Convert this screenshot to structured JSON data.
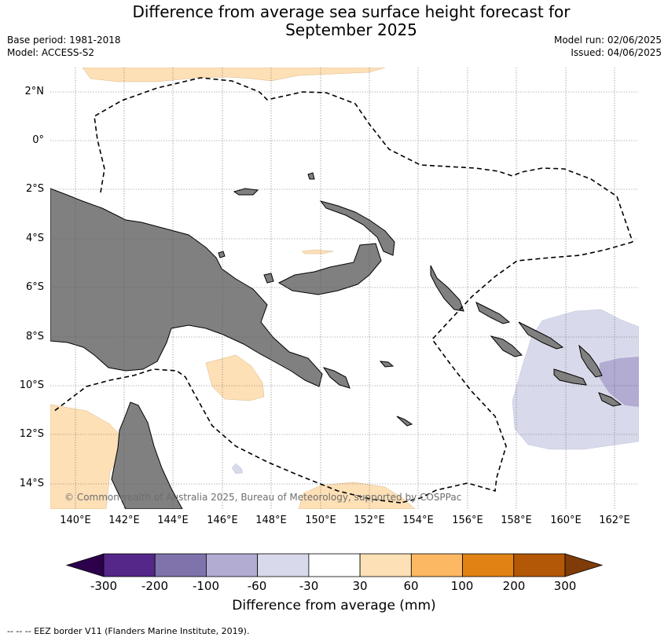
{
  "title_line1": "Difference from average sea surface height forecast for",
  "title_line2": "September 2025",
  "meta_left": {
    "base_period": "Base period: 1981-2018",
    "model": "Model: ACCESS-S2"
  },
  "meta_right": {
    "model_run": "Model run: 02/06/2025",
    "issued": "Issued: 04/06/2025"
  },
  "lat_labels": [
    "2°N",
    "0°",
    "2°S",
    "4°S",
    "6°S",
    "8°S",
    "10°S",
    "12°S",
    "14°S"
  ],
  "lon_labels": [
    "140°E",
    "142°E",
    "144°E",
    "146°E",
    "148°E",
    "150°E",
    "152°E",
    "154°E",
    "156°E",
    "158°E",
    "160°E",
    "162°E"
  ],
  "copyright": "© Commonwealth of Australia 2025, Bureau of Meteorology, supported by COSPPac",
  "colorbar": {
    "ticks": [
      "-300",
      "-200",
      "-100",
      "-60",
      "-30",
      "30",
      "60",
      "100",
      "200",
      "300"
    ],
    "colors": [
      "#2d004b",
      "#542788",
      "#8073ac",
      "#b2abd2",
      "#d8daeb",
      "#ffffff",
      "#fee0b6",
      "#fdb863",
      "#e08214",
      "#b35806",
      "#7f3b08"
    ],
    "label": "Difference from average (mm)"
  },
  "colors": {
    "land": "#808080",
    "ocean": "#ffffff",
    "eez": "#000000"
  },
  "footer": "--  --  -- EEZ border V11 (Flanders Marine Institute, 2019)."
}
